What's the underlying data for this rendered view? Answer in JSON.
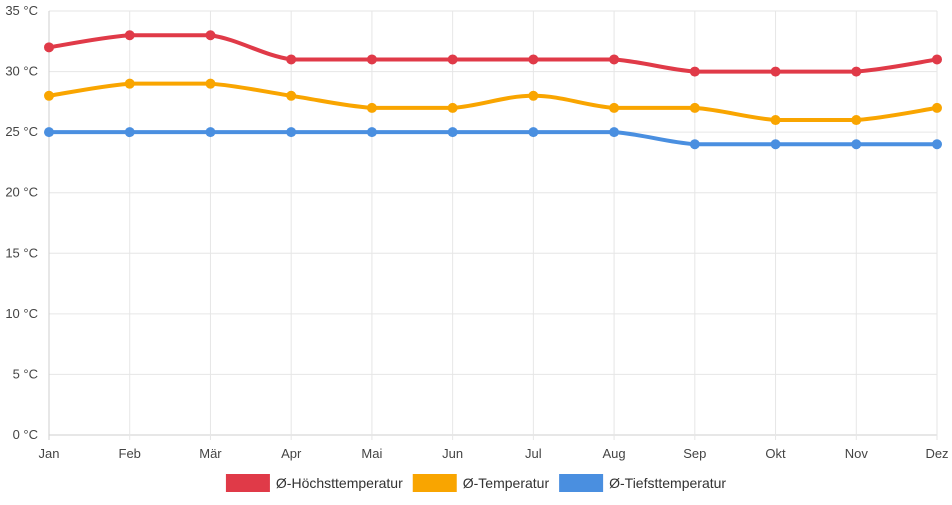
{
  "chart_data": {
    "type": "line",
    "categories": [
      "Jan",
      "Feb",
      "Mär",
      "Apr",
      "Mai",
      "Jun",
      "Jul",
      "Aug",
      "Sep",
      "Okt",
      "Nov",
      "Dez"
    ],
    "y_ticks": [
      "0 °C",
      "5 °C",
      "10 °C",
      "15 °C",
      "20 °C",
      "25 °C",
      "30 °C",
      "35 °C"
    ],
    "ylim": [
      0,
      35
    ],
    "y_step": 5,
    "grid": true,
    "legend_position": "bottom",
    "series": [
      {
        "name": "Ø-Höchsttemperatur",
        "color": "#e03a48",
        "values": [
          32,
          33,
          33,
          31,
          31,
          31,
          31,
          31,
          30,
          30,
          30,
          31
        ]
      },
      {
        "name": "Ø-Temperatur",
        "color": "#f9a500",
        "values": [
          28,
          29,
          29,
          28,
          27,
          27,
          28,
          27,
          27,
          26,
          26,
          27
        ]
      },
      {
        "name": "Ø-Tiefsttemperatur",
        "color": "#4a8fe0",
        "values": [
          25,
          25,
          25,
          25,
          25,
          25,
          25,
          25,
          24,
          24,
          24,
          24
        ]
      }
    ]
  }
}
